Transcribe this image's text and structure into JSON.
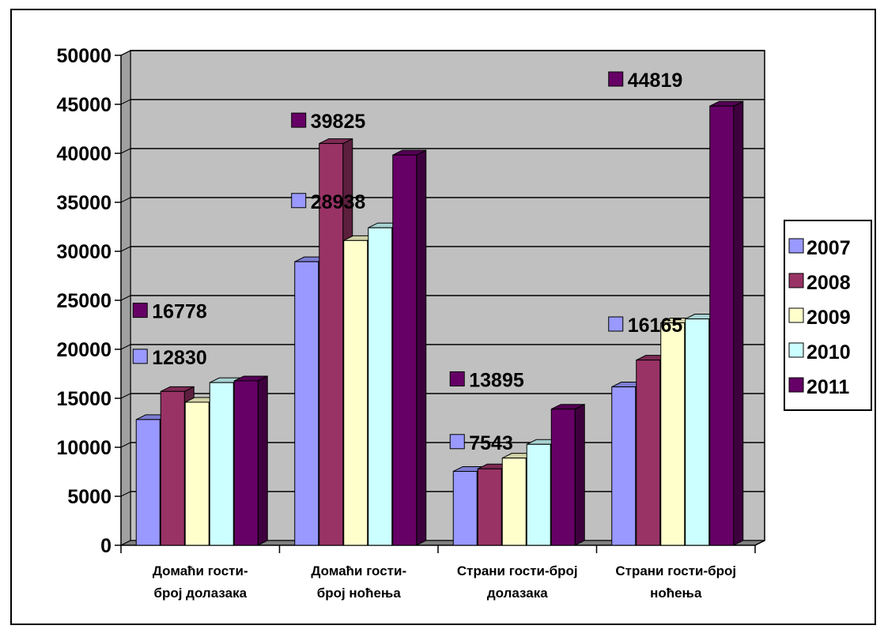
{
  "chart_data": {
    "type": "bar",
    "categories": [
      [
        "Домаћи гости-",
        "број долазака"
      ],
      [
        "Домаћи гости-",
        "број ноћења"
      ],
      [
        "Страни гости-број",
        "долазака"
      ],
      [
        "Страни гости-број",
        "ноћења"
      ]
    ],
    "series": [
      {
        "name": "2007",
        "values": [
          12830,
          28938,
          7543,
          16165
        ]
      },
      {
        "name": "2008",
        "values": [
          15700,
          41000,
          7800,
          18900
        ]
      },
      {
        "name": "2009",
        "values": [
          14600,
          31100,
          8900,
          22700
        ]
      },
      {
        "name": "2010",
        "values": [
          16600,
          32400,
          10300,
          23100
        ]
      },
      {
        "name": "2011",
        "values": [
          16778,
          39825,
          13895,
          44819
        ]
      }
    ],
    "colors": {
      "2007": "#9999ff",
      "2008": "#993366",
      "2009": "#ffffcc",
      "2010": "#ccffff",
      "2011": "#660066",
      "wall": "#c0c0c0",
      "floor": "#808080"
    },
    "data_labels": [
      {
        "series": "2007",
        "category_index": 0,
        "text": "12830",
        "y": 19200
      },
      {
        "series": "2011",
        "category_index": 0,
        "text": "16778",
        "y": 23900
      },
      {
        "series": "2007",
        "category_index": 1,
        "text": "28938",
        "y": 35100
      },
      {
        "series": "2011",
        "category_index": 1,
        "text": "39825",
        "y": 43300
      },
      {
        "series": "2007",
        "category_index": 2,
        "text": "7543",
        "y": 10500
      },
      {
        "series": "2011",
        "category_index": 2,
        "text": "13895",
        "y": 16900
      },
      {
        "series": "2007",
        "category_index": 3,
        "text": "16165",
        "y": 22500
      },
      {
        "series": "2011",
        "category_index": 3,
        "text": "44819",
        "y": 47500
      }
    ],
    "yticks": [
      "0",
      "5000",
      "10000",
      "15000",
      "20000",
      "25000",
      "30000",
      "35000",
      "40000",
      "45000",
      "50000"
    ],
    "ylim": [
      0,
      50000
    ],
    "grid": true,
    "legend": {
      "position": "right",
      "items": [
        "2007",
        "2008",
        "2009",
        "2010",
        "2011"
      ]
    },
    "title": "",
    "xlabel": "",
    "ylabel": ""
  }
}
